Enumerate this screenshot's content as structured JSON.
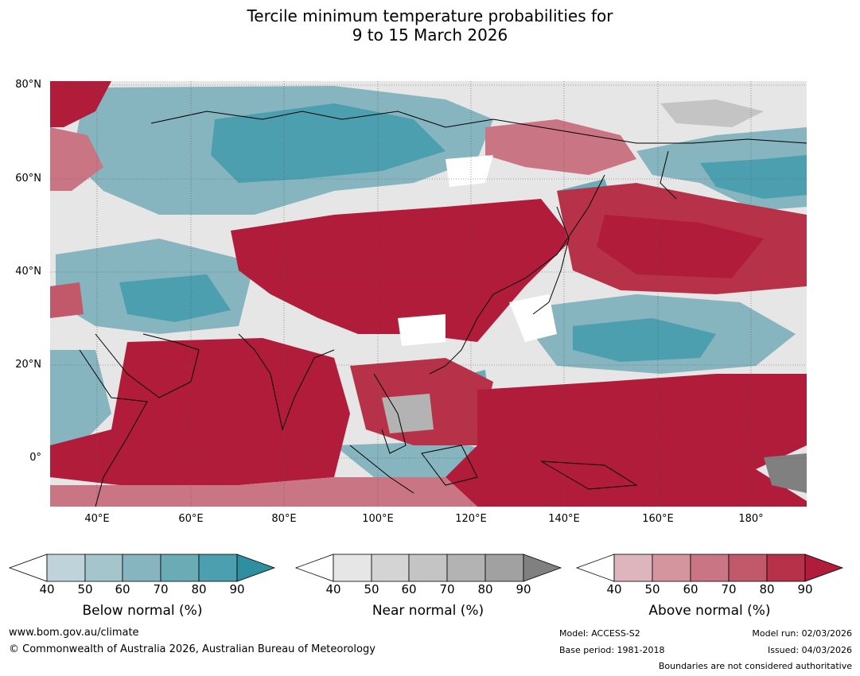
{
  "title_line1": "Tercile minimum temperature probabilities for",
  "title_line2": "9 to 15 March 2026",
  "lat_labels": [
    "80°N",
    "60°N",
    "40°N",
    "20°N",
    "0°"
  ],
  "lon_labels": [
    "40°E",
    "60°E",
    "80°E",
    "100°E",
    "120°E",
    "140°E",
    "160°E",
    "180°"
  ],
  "colorbars": [
    {
      "title": "Below normal (%)",
      "ticks": [
        "40",
        "50",
        "60",
        "70",
        "80",
        "90"
      ],
      "colors": [
        "#bfd4da",
        "#a5c5cc",
        "#86b4bf",
        "#6aabb6",
        "#4b9faf",
        "#2f8fa1"
      ]
    },
    {
      "title": "Near normal (%)",
      "ticks": [
        "40",
        "50",
        "60",
        "70",
        "80",
        "90"
      ],
      "colors": [
        "#e6e6e6",
        "#d4d4d4",
        "#c4c4c4",
        "#b3b3b3",
        "#a1a1a1",
        "#808080"
      ]
    },
    {
      "title": "Above normal (%)",
      "ticks": [
        "40",
        "50",
        "60",
        "70",
        "80",
        "90"
      ],
      "colors": [
        "#deb5bc",
        "#d4959f",
        "#c97584",
        "#c1596a",
        "#b73249",
        "#b11c3a"
      ]
    }
  ],
  "footer": {
    "website": "www.bom.gov.au/climate",
    "copyright": "© Commonwealth of Australia 2026, Australian Bureau of Meteorology",
    "model": "Model: ACCESS-S2",
    "base_period": "Base period: 1981-2018",
    "model_run": "Model run: 02/03/2026",
    "issued": "Issued: 04/03/2026",
    "boundaries": "Boundaries are not considered authoritative"
  }
}
